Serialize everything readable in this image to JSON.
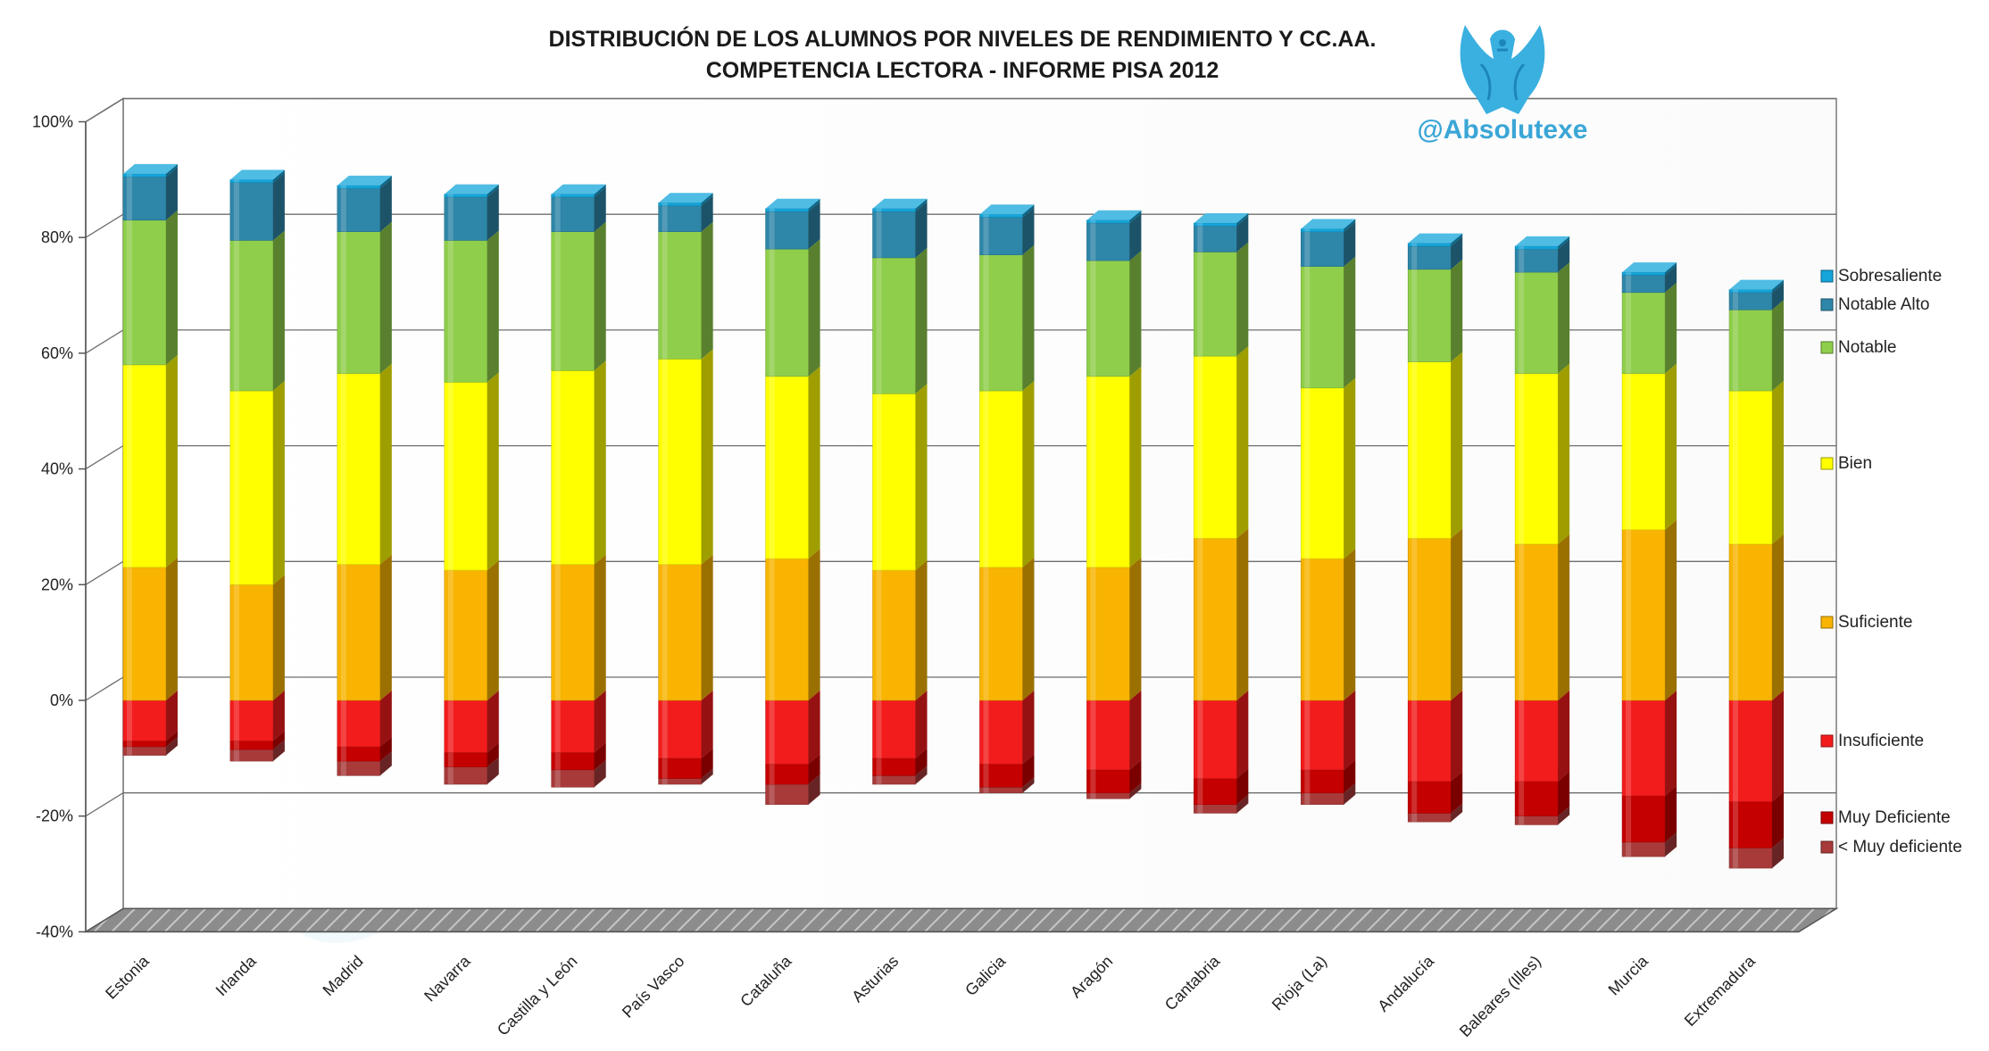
{
  "chart_data": {
    "type": "bar",
    "stacked": true,
    "title": "DISTRIBUCIÓN DE LOS ALUMNOS POR NIVELES DE RENDIMIENTO Y CC.AA.",
    "subtitle": "COMPETENCIA LECTORA - INFORME PISA 2012",
    "ylim": [
      -40,
      100
    ],
    "yticks": [
      "-40%",
      "-20%",
      "0%",
      "20%",
      "40%",
      "60%",
      "80%",
      "100%"
    ],
    "yticks_values": [
      -40,
      -20,
      0,
      20,
      40,
      60,
      80,
      100
    ],
    "grid": true,
    "legend_position": "right",
    "categories": [
      "Estonia",
      "Irlanda",
      "Madrid",
      "Navarra",
      "Castilla y León",
      "País Vasco",
      "Cataluña",
      "Asturias",
      "Galicia",
      "Aragón",
      "Cantabria",
      "Rioja (La)",
      "Andalucía",
      "Baleares (Illes)",
      "Murcia",
      "Extremadura"
    ],
    "series": [
      {
        "name": "< Muy deficiente",
        "color": "#a83a3a",
        "values": [
          -1.5,
          -2.0,
          -2.5,
          -3.0,
          -3.0,
          -1.0,
          -3.5,
          -1.5,
          -1.0,
          -1.0,
          -1.5,
          -2.0,
          -1.5,
          -1.5,
          -2.5,
          -3.5
        ]
      },
      {
        "name": "Muy Deficiente",
        "color": "#c40000",
        "values": [
          -1.0,
          -1.5,
          -2.5,
          -2.5,
          -3.0,
          -3.5,
          -3.5,
          -3.0,
          -4.0,
          -4.0,
          -4.5,
          -4.0,
          -5.5,
          -6.0,
          -8.0,
          -8.0
        ]
      },
      {
        "name": "Insuficiente",
        "color": "#f21c1c",
        "values": [
          -7.0,
          -7.0,
          -8.0,
          -9.0,
          -9.0,
          -10.0,
          -11.0,
          -10.0,
          -11.0,
          -12.0,
          -13.5,
          -12.0,
          -14.0,
          -14.0,
          -16.5,
          -17.5
        ]
      },
      {
        "name": "Suficiente",
        "color": "#f8b400",
        "values": [
          23.0,
          20.0,
          23.5,
          22.5,
          23.5,
          23.5,
          24.5,
          22.5,
          23.0,
          23.0,
          28.0,
          24.5,
          28.0,
          27.0,
          29.5,
          27.0
        ]
      },
      {
        "name": "Bien",
        "color": "#ffff00",
        "values": [
          35.0,
          33.5,
          33.0,
          32.5,
          33.5,
          35.5,
          31.5,
          30.5,
          30.5,
          33.0,
          31.5,
          29.5,
          30.5,
          29.5,
          27.0,
          26.5
        ]
      },
      {
        "name": "Notable",
        "color": "#8fce4a",
        "values": [
          25.0,
          26.0,
          24.5,
          24.5,
          24.0,
          22.0,
          22.0,
          23.5,
          23.5,
          20.0,
          18.0,
          21.0,
          16.0,
          17.5,
          14.0,
          14.0
        ]
      },
      {
        "name": "Notable Alto",
        "color": "#2e86a8",
        "values": [
          7.5,
          10.0,
          7.5,
          7.5,
          6.0,
          4.5,
          6.5,
          8.0,
          6.5,
          6.5,
          4.5,
          6.0,
          4.0,
          4.0,
          3.0,
          3.0
        ]
      },
      {
        "name": "Sobresaliente",
        "color": "#14a5da",
        "values": [
          0.5,
          0.5,
          0.5,
          0.5,
          0.5,
          0.5,
          0.5,
          0.5,
          0.5,
          0.5,
          0.5,
          0.5,
          0.5,
          0.5,
          0.5,
          0.5
        ]
      }
    ]
  },
  "branding": {
    "handle": "@Absolutexe",
    "logo_icon": "griffin-logo-icon"
  }
}
